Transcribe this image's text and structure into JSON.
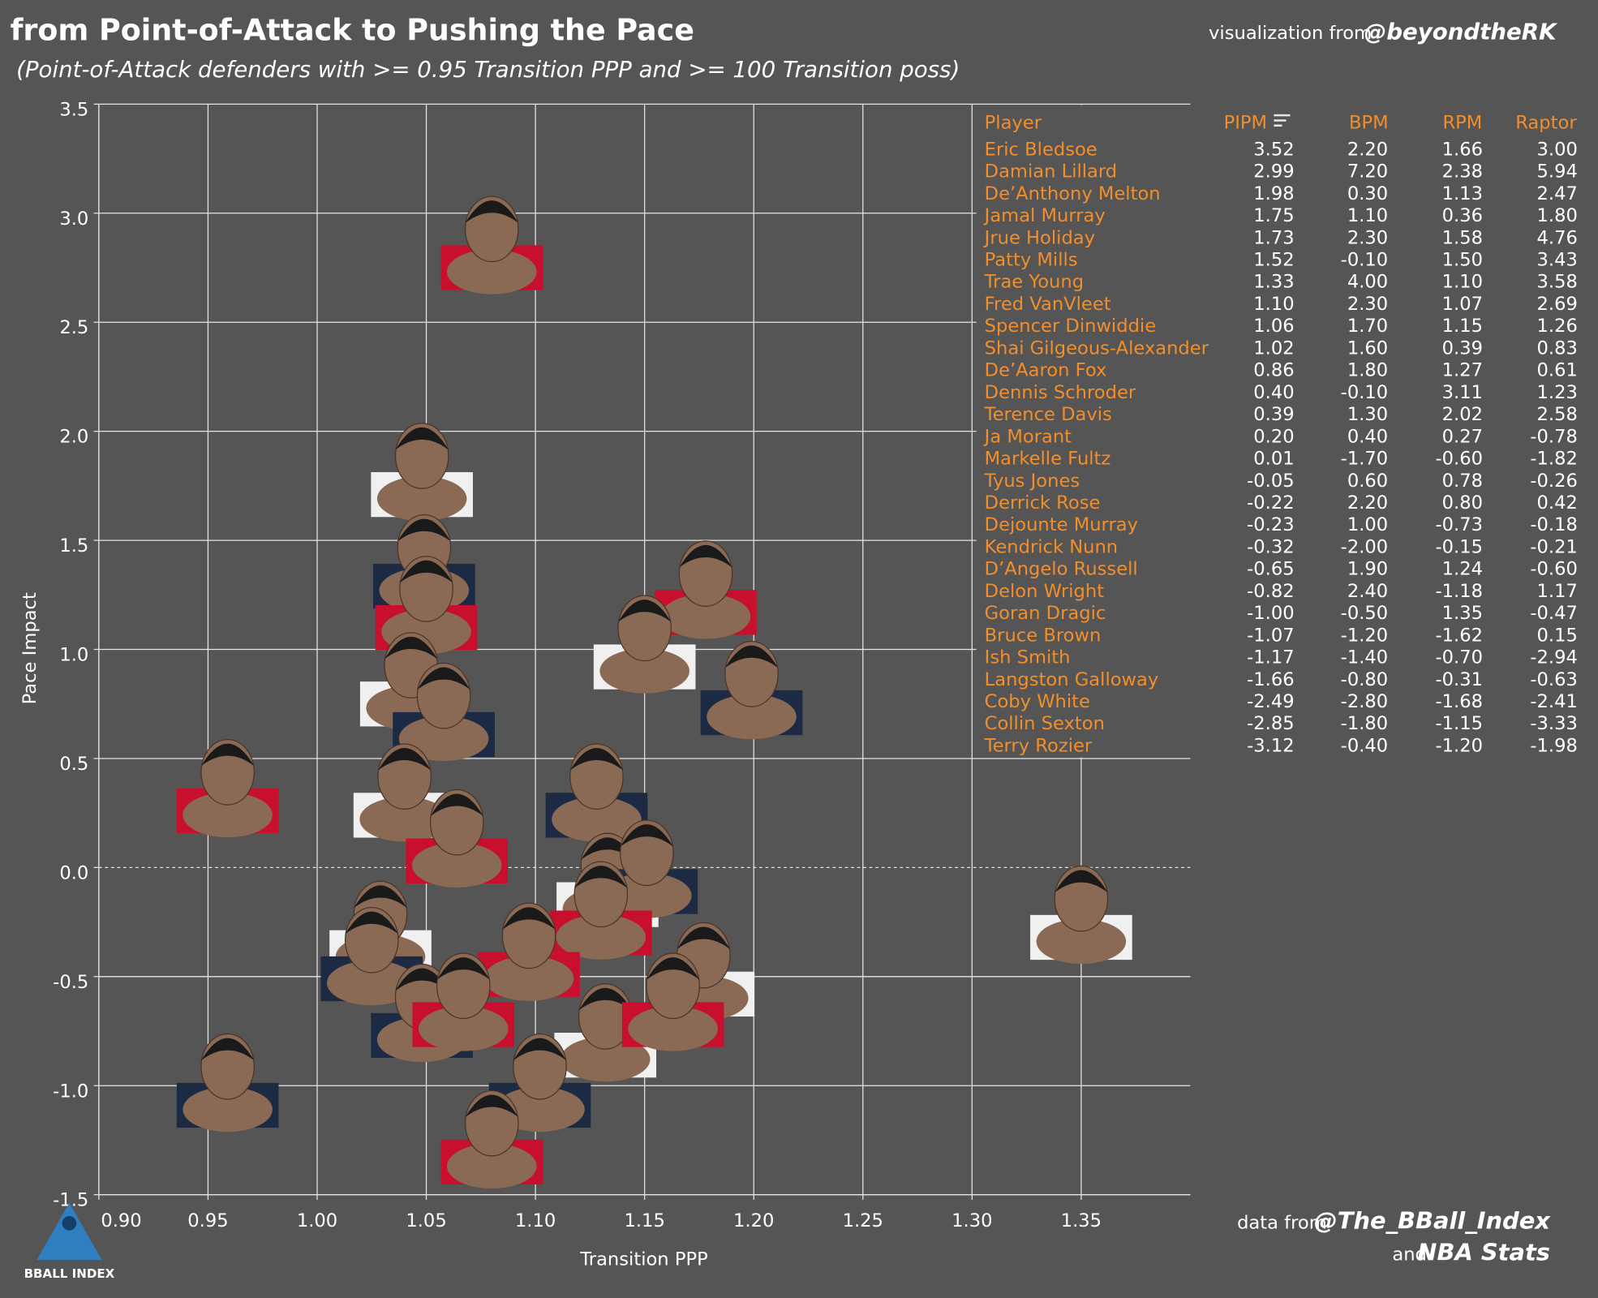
{
  "header": {
    "title": "from Point-of-Attack to Pushing the Pace",
    "subtitle": "(Point-of-Attack defenders with >= 0.95 Transition PPP and >=  100 Transition poss)",
    "credit_prefix": "visualization from",
    "credit_handle": "@beyondtheRK"
  },
  "footer": {
    "source_prefix": "data from",
    "source_handle": "@The_BBall_Index",
    "source_and": "and",
    "source_second": "NBA Stats",
    "logo_text": "BBALL INDEX"
  },
  "chart_data": {
    "type": "scatter",
    "x_label": "Transition PPP",
    "y_label": "Pace Impact",
    "xlim": [
      0.9,
      1.4
    ],
    "ylim": [
      -1.5,
      3.5
    ],
    "xticks": [
      {
        "value": 0.9,
        "label": "0.90"
      },
      0.95,
      {
        "value": 1.0,
        "label": "1.00"
      },
      1.05,
      {
        "value": 1.1,
        "label": "1.10"
      },
      1.15,
      {
        "value": 1.2,
        "label": "1.20"
      },
      1.25,
      {
        "value": 1.3,
        "label": "1.30"
      },
      1.35
    ],
    "yticks": [
      3.5,
      {
        "value": 3.0,
        "label": "3.0"
      },
      2.5,
      {
        "value": 2.0,
        "label": "2.0"
      },
      1.5,
      {
        "value": 1.0,
        "label": "1.0"
      },
      0.5,
      {
        "value": 0.0,
        "label": "0.0"
      },
      -0.5,
      {
        "value": -1.0,
        "label": "-1.0"
      },
      -1.5
    ],
    "grid": true,
    "color": "#8a6a55",
    "x": [
      1.08,
      1.048,
      1.049,
      1.05,
      1.043,
      1.058,
      1.178,
      1.15,
      1.199,
      0.959,
      1.04,
      1.128,
      1.064,
      1.133,
      1.151,
      1.13,
      1.029,
      1.025,
      1.097,
      1.177,
      1.048,
      1.067,
      1.132,
      1.102,
      1.163,
      1.35,
      0.959,
      1.08
    ],
    "values": [
      2.89,
      1.85,
      1.43,
      1.24,
      0.89,
      0.75,
      1.31,
      1.06,
      0.85,
      0.4,
      0.38,
      0.38,
      0.17,
      -0.03,
      0.03,
      -0.16,
      -0.25,
      -0.37,
      -0.35,
      -0.44,
      -0.63,
      -0.58,
      -0.72,
      -0.95,
      -0.58,
      -0.18,
      -0.95,
      -1.21
    ]
  },
  "table": {
    "headers": [
      "Player",
      "PIPM",
      "BPM",
      "RPM",
      "Raptor"
    ],
    "rows": [
      [
        "Eric Bledsoe",
        "3.52",
        "2.20",
        "1.66",
        "3.00"
      ],
      [
        "Damian Lillard",
        "2.99",
        "7.20",
        "2.38",
        "5.94"
      ],
      [
        "De’Anthony Melton",
        "1.98",
        "0.30",
        "1.13",
        "2.47"
      ],
      [
        "Jamal Murray",
        "1.75",
        "1.10",
        "0.36",
        "1.80"
      ],
      [
        "Jrue Holiday",
        "1.73",
        "2.30",
        "1.58",
        "4.76"
      ],
      [
        "Patty Mills",
        "1.52",
        "-0.10",
        "1.50",
        "3.43"
      ],
      [
        "Trae Young",
        "1.33",
        "4.00",
        "1.10",
        "3.58"
      ],
      [
        "Fred VanVleet",
        "1.10",
        "2.30",
        "1.07",
        "2.69"
      ],
      [
        "Spencer Dinwiddie",
        "1.06",
        "1.70",
        "1.15",
        "1.26"
      ],
      [
        "Shai Gilgeous-Alexander",
        "1.02",
        "1.60",
        "0.39",
        "0.83"
      ],
      [
        "De’Aaron Fox",
        "0.86",
        "1.80",
        "1.27",
        "0.61"
      ],
      [
        "Dennis Schroder",
        "0.40",
        "-0.10",
        "3.11",
        "1.23"
      ],
      [
        "Terence Davis",
        "0.39",
        "1.30",
        "2.02",
        "2.58"
      ],
      [
        "Ja Morant",
        "0.20",
        "0.40",
        "0.27",
        "-0.78"
      ],
      [
        "Markelle Fultz",
        "0.01",
        "-1.70",
        "-0.60",
        "-1.82"
      ],
      [
        "Tyus Jones",
        "-0.05",
        "0.60",
        "0.78",
        "-0.26"
      ],
      [
        "Derrick Rose",
        "-0.22",
        "2.20",
        "0.80",
        "0.42"
      ],
      [
        "Dejounte Murray",
        "-0.23",
        "1.00",
        "-0.73",
        "-0.18"
      ],
      [
        "Kendrick Nunn",
        "-0.32",
        "-2.00",
        "-0.15",
        "-0.21"
      ],
      [
        "D’Angelo Russell",
        "-0.65",
        "1.90",
        "1.24",
        "-0.60"
      ],
      [
        "Delon Wright",
        "-0.82",
        "2.40",
        "-1.18",
        "1.17"
      ],
      [
        "Goran Dragic",
        "-1.00",
        "-0.50",
        "1.35",
        "-0.47"
      ],
      [
        "Bruce Brown",
        "-1.07",
        "-1.20",
        "-1.62",
        "0.15"
      ],
      [
        "Ish Smith",
        "-1.17",
        "-1.40",
        "-0.70",
        "-2.94"
      ],
      [
        "Langston Galloway",
        "-1.66",
        "-0.80",
        "-0.31",
        "-0.63"
      ],
      [
        "Coby White",
        "-2.49",
        "-2.80",
        "-1.68",
        "-2.41"
      ],
      [
        "Collin Sexton",
        "-2.85",
        "-1.80",
        "-1.15",
        "-3.33"
      ],
      [
        "Terry Rozier",
        "-3.12",
        "-0.40",
        "-1.20",
        "-1.98"
      ]
    ]
  }
}
